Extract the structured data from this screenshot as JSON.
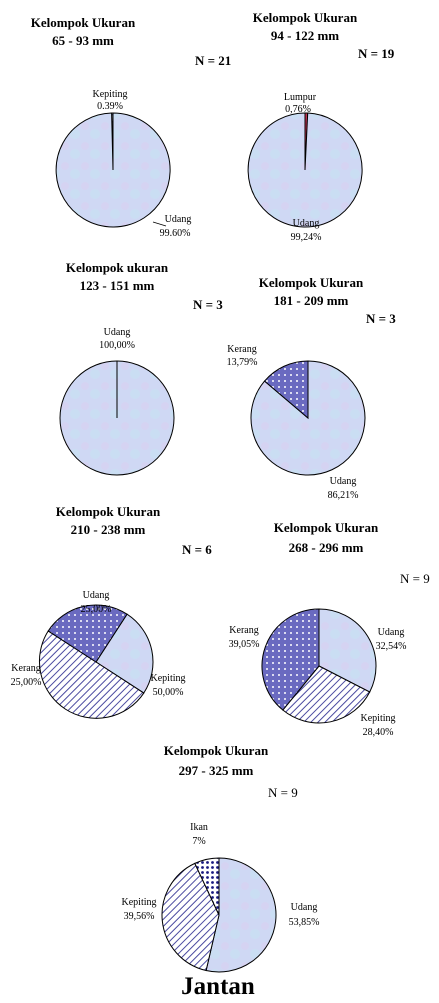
{
  "footer": "Jantan",
  "colors": {
    "udang": "#cfd8f4",
    "outline": "#000000",
    "pattern": "#4a4aa0",
    "lumpur": "#c03050"
  },
  "chart_data": [
    {
      "type": "pie",
      "title": [
        "Kelompok Ukuran",
        "65 - 93 mm"
      ],
      "n_label": "N = 21",
      "slices": [
        {
          "name": "Kepiting",
          "label": "0.39%",
          "value": 0.39,
          "fill": "pattern-stripe"
        },
        {
          "name": "Udang",
          "label": "99.60%",
          "value": 99.6,
          "fill": "udang"
        }
      ]
    },
    {
      "type": "pie",
      "title": [
        "Kelompok Ukuran",
        "94 - 122 mm"
      ],
      "n_label": "N = 19",
      "slices": [
        {
          "name": "Lumpur",
          "label": "0,76%",
          "value": 0.76,
          "fill": "lumpur"
        },
        {
          "name": "Udang",
          "label": "99,24%",
          "value": 99.24,
          "fill": "udang"
        }
      ]
    },
    {
      "type": "pie",
      "title": [
        "Kelompok ukuran",
        "123 - 151 mm"
      ],
      "n_label": "N = 3",
      "slices": [
        {
          "name": "Udang",
          "label": "100,00%",
          "value": 100.0,
          "fill": "udang"
        }
      ]
    },
    {
      "type": "pie",
      "title": [
        "Kelompok Ukuran",
        "181 - 209 mm"
      ],
      "n_label": "N = 3",
      "slices": [
        {
          "name": "Udang",
          "label": "86,21%",
          "value": 86.21,
          "fill": "udang"
        },
        {
          "name": "Kerang",
          "label": "13,79%",
          "value": 13.79,
          "fill": "pattern-dots"
        }
      ]
    },
    {
      "type": "pie",
      "title": [
        "Kelompok Ukuran",
        "210 - 238 mm"
      ],
      "n_label": "N = 6",
      "slices": [
        {
          "name": "Udang",
          "label": "25,00%",
          "value": 25.0,
          "fill": "udang"
        },
        {
          "name": "Kepiting",
          "label": "50,00%",
          "value": 50.0,
          "fill": "pattern-stripe"
        },
        {
          "name": "Kerang",
          "label": "25,00%",
          "value": 25.0,
          "fill": "pattern-dots"
        }
      ]
    },
    {
      "type": "pie",
      "title": [
        "Kelompok Ukuran",
        "268 - 296 mm"
      ],
      "n_label": "N = 9",
      "slices": [
        {
          "name": "Udang",
          "label": "32,54%",
          "value": 32.54,
          "fill": "udang"
        },
        {
          "name": "Kepiting",
          "label": "28,40%",
          "value": 28.4,
          "fill": "pattern-stripe"
        },
        {
          "name": "Kerang",
          "label": "39,05%",
          "value": 39.05,
          "fill": "pattern-dots"
        }
      ]
    },
    {
      "type": "pie",
      "title": [
        "Kelompok Ukuran",
        "297 - 325 mm"
      ],
      "n_label": "N = 9",
      "slices": [
        {
          "name": "Udang",
          "label": "53,85%",
          "value": 53.85,
          "fill": "udang"
        },
        {
          "name": "Kepiting",
          "label": "39,56%",
          "value": 39.56,
          "fill": "pattern-stripe"
        },
        {
          "name": "Ikan",
          "label": "7%",
          "value": 7,
          "fill": "pattern-bigdots"
        }
      ]
    }
  ]
}
